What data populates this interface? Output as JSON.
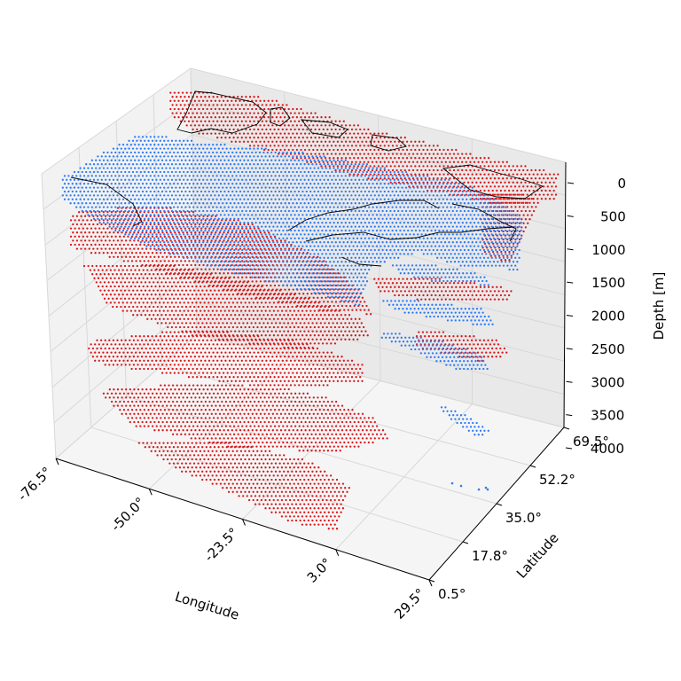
{
  "chart_data": {
    "type": "scatter3d",
    "title": "",
    "xlabel": "Longitude",
    "ylabel": "Latitude",
    "zlabel": "Depth [m]",
    "x_ticks": [
      "-76.5°",
      "-50.0°",
      "-23.5°",
      "3.0°",
      "29.5°"
    ],
    "y_ticks": [
      "0.5°",
      "17.8°",
      "35.0°",
      "52.2°",
      "69.5°"
    ],
    "z_ticks": [
      "0",
      "500",
      "1000",
      "1500",
      "2000",
      "2500",
      "3000",
      "3500",
      "4000"
    ],
    "xlim": [
      -76.5,
      29.5
    ],
    "ylim": [
      0.5,
      69.5
    ],
    "zlim": [
      0,
      4000
    ],
    "z_inverted": true,
    "grid": true,
    "series": [
      {
        "color": "#d7191c",
        "depths": [
          0,
          500,
          1000,
          1500,
          2000,
          2500,
          3000,
          3500,
          4000
        ]
      },
      {
        "color": "#2b7bf6",
        "depths": [
          0,
          500,
          1000,
          1500,
          2000,
          2500,
          3000,
          3500,
          4000
        ]
      }
    ]
  }
}
